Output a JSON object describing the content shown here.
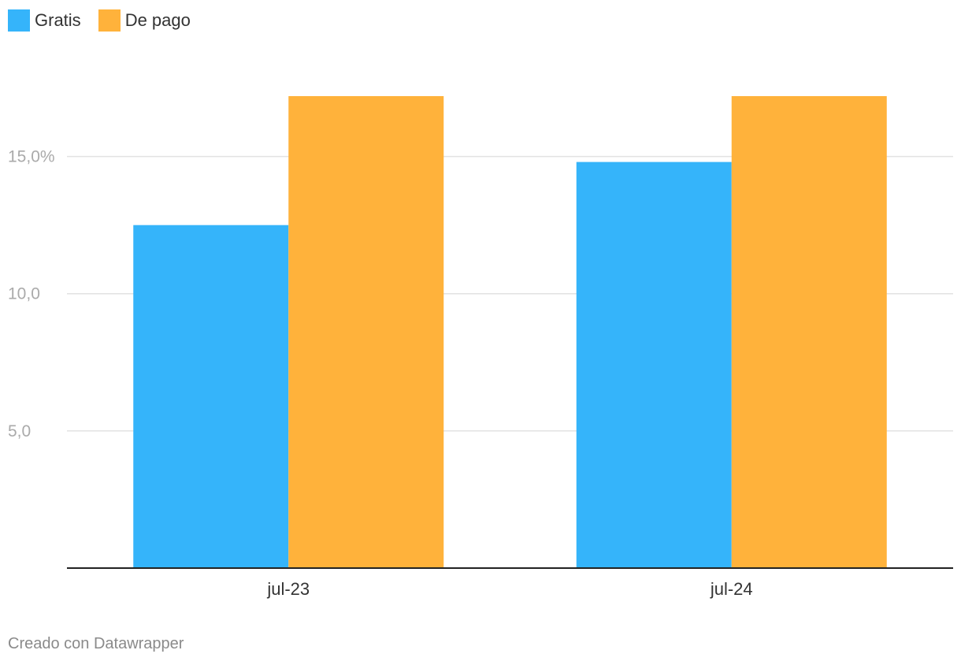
{
  "chart_data": {
    "type": "bar",
    "categories": [
      "jul-23",
      "jul-24"
    ],
    "series": [
      {
        "name": "Gratis",
        "color": "#35b4fa",
        "values": [
          12.5,
          14.8
        ]
      },
      {
        "name": "De pago",
        "color": "#ffb23b",
        "values": [
          17.2,
          17.2
        ]
      }
    ],
    "ylim": [
      0,
      17.2
    ],
    "yticks": [
      {
        "value": 5,
        "label": "5,0"
      },
      {
        "value": 10,
        "label": "10,0"
      },
      {
        "value": 15,
        "label": "15,0%"
      }
    ],
    "grid": true,
    "legend_position": "top-left",
    "xlabel": "",
    "ylabel": ""
  },
  "footer": {
    "credit": "Creado con Datawrapper"
  }
}
